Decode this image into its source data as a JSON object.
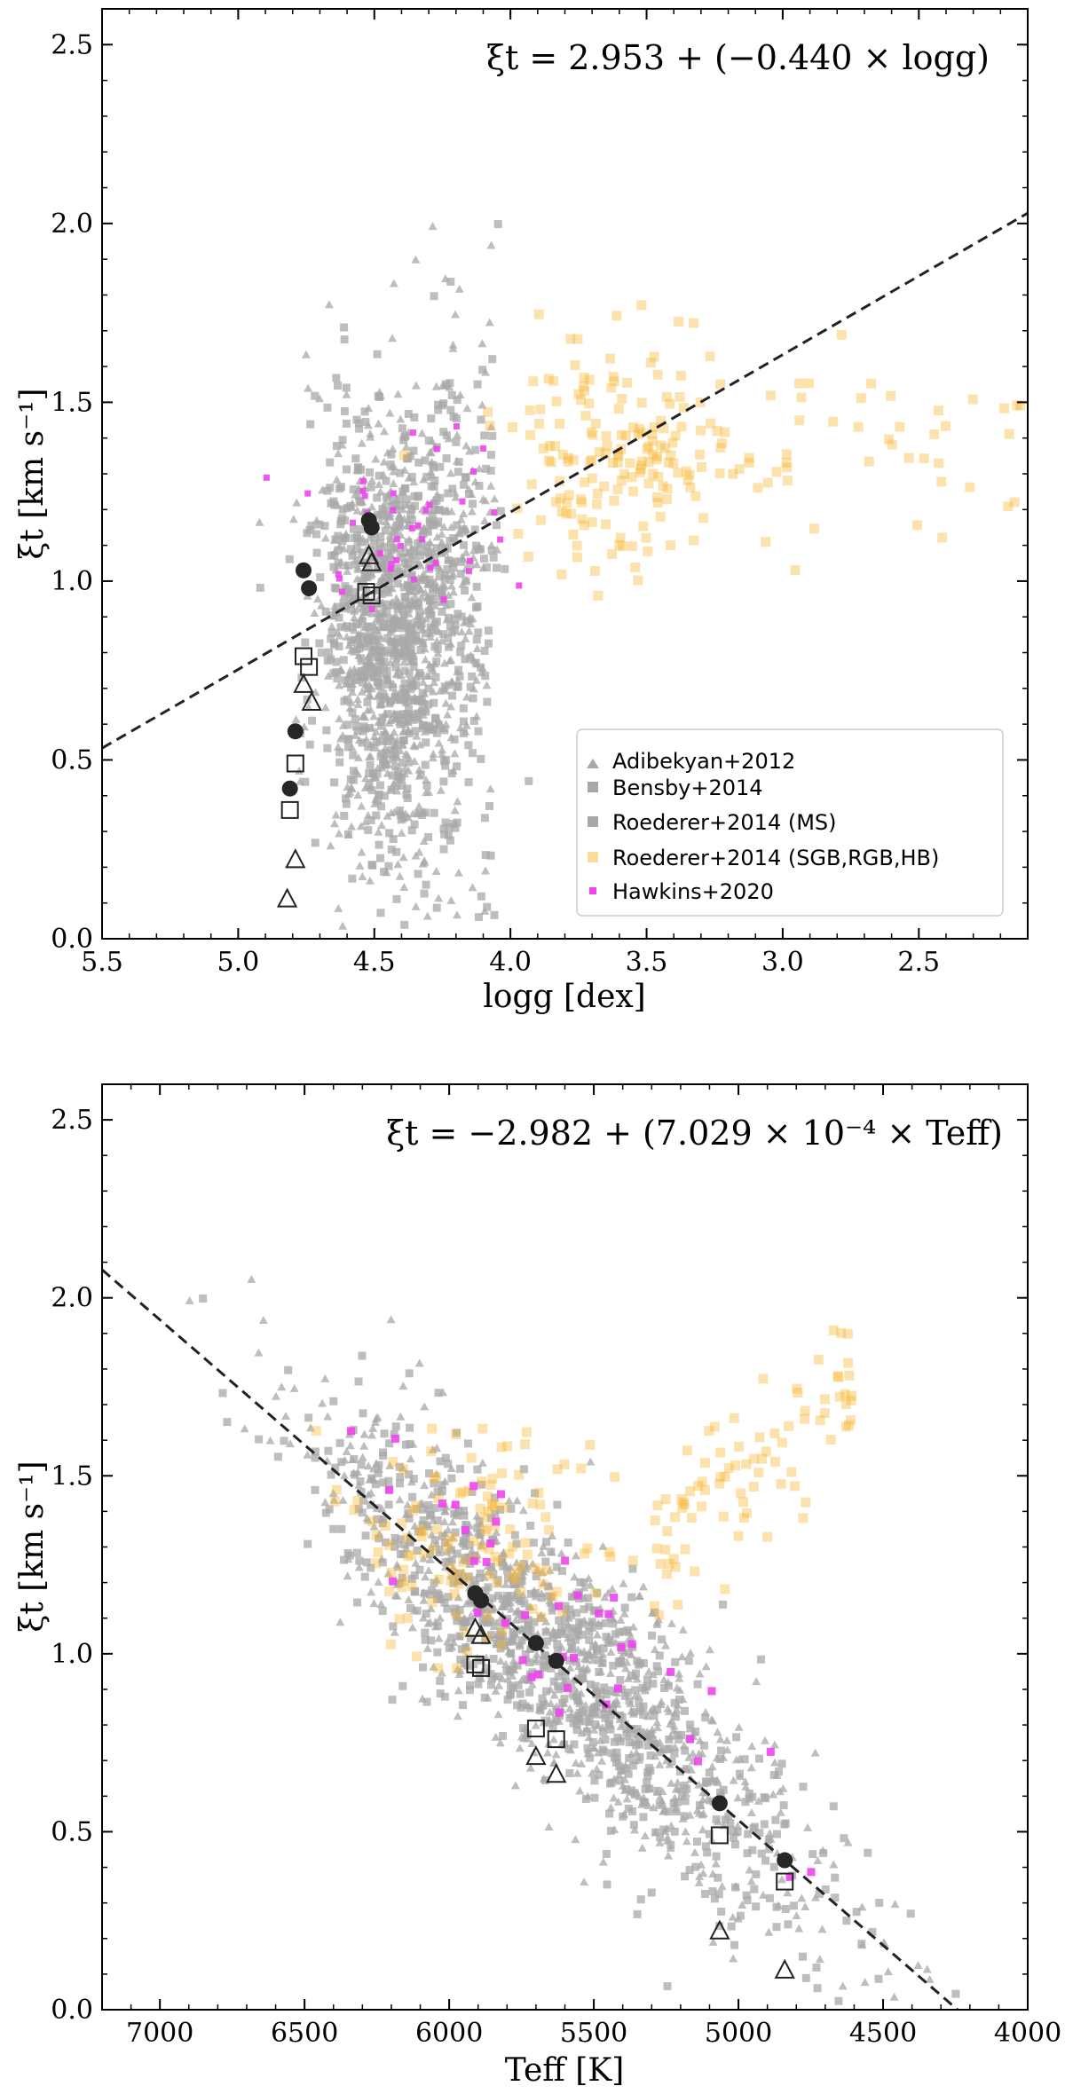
{
  "chart_data": [
    {
      "type": "scatter",
      "id": "top",
      "equation": "ξt = 2.953 + (−0.440 × logg)",
      "xlabel": "logg [dex]",
      "ylabel": "ξt [km s⁻¹]",
      "xlim": [
        5.5,
        2.1
      ],
      "ylim": [
        0,
        2.6
      ],
      "xticks": [
        "5.5",
        "5.0",
        "4.5",
        "4.0",
        "3.5",
        "3.0",
        "2.5"
      ],
      "yticks": [
        "0.0",
        "0.5",
        "1.0",
        "1.5",
        "2.0",
        "2.5"
      ],
      "fit_line": {
        "intercept": 2.953,
        "slope": -0.44
      },
      "legend": {
        "placement": "lower-right",
        "entries": [
          {
            "label": "Adibekyan+2012",
            "marker": "triangle",
            "color": "#a8a8a8"
          },
          {
            "label": "Bensby+2014",
            "marker": "square",
            "color": "#a8a8a8"
          },
          {
            "label": "Roederer+2014 (MS)",
            "marker": "square",
            "color": "#a8a8a8"
          },
          {
            "label": "Roederer+2014 (SGB,RGB,HB)",
            "marker": "square",
            "color": "#f7b733"
          },
          {
            "label": "Hawkins+2020",
            "marker": "square",
            "color": "#ee44ee"
          }
        ]
      },
      "highlight_series": [
        {
          "name": "filled circles",
          "marker": "circle-filled",
          "points": [
            [
              4.52,
              1.17
            ],
            [
              4.51,
              1.15
            ],
            [
              4.76,
              1.03
            ],
            [
              4.74,
              0.98
            ],
            [
              4.79,
              0.58
            ],
            [
              4.81,
              0.42
            ]
          ]
        },
        {
          "name": "open squares",
          "marker": "square-open",
          "points": [
            [
              4.53,
              0.97
            ],
            [
              4.51,
              0.96
            ],
            [
              4.76,
              0.79
            ],
            [
              4.74,
              0.76
            ],
            [
              4.79,
              0.49
            ],
            [
              4.81,
              0.36
            ]
          ]
        },
        {
          "name": "open triangles",
          "marker": "triangle-open",
          "points": [
            [
              4.52,
              1.07
            ],
            [
              4.51,
              1.05
            ],
            [
              4.76,
              0.71
            ],
            [
              4.73,
              0.66
            ],
            [
              4.79,
              0.22
            ],
            [
              4.82,
              0.11
            ]
          ]
        }
      ]
    },
    {
      "type": "scatter",
      "id": "bottom",
      "equation": "ξt = −2.982 + (7.029 × 10⁻⁴ × Teff)",
      "xlabel": "Teff [K]",
      "ylabel": "ξt [km s⁻¹]",
      "xlim": [
        7200,
        4000
      ],
      "ylim": [
        0,
        2.6
      ],
      "xticks": [
        "7000",
        "6500",
        "6000",
        "5500",
        "5000",
        "4500",
        "4000"
      ],
      "yticks": [
        "0.0",
        "0.5",
        "1.0",
        "1.5",
        "2.0",
        "2.5"
      ],
      "fit_line": {
        "intercept": -2.982,
        "slope": 0.0007029
      },
      "highlight_series": [
        {
          "name": "filled circles",
          "marker": "circle-filled",
          "points": [
            [
              5910,
              1.17
            ],
            [
              5890,
              1.15
            ],
            [
              5700,
              1.03
            ],
            [
              5630,
              0.98
            ],
            [
              5065,
              0.58
            ],
            [
              4840,
              0.42
            ]
          ]
        },
        {
          "name": "open squares",
          "marker": "square-open",
          "points": [
            [
              5910,
              0.97
            ],
            [
              5890,
              0.96
            ],
            [
              5700,
              0.79
            ],
            [
              5630,
              0.76
            ],
            [
              5065,
              0.49
            ],
            [
              4840,
              0.36
            ]
          ]
        },
        {
          "name": "open triangles",
          "marker": "triangle-open",
          "points": [
            [
              5910,
              1.07
            ],
            [
              5890,
              1.05
            ],
            [
              5700,
              0.71
            ],
            [
              5630,
              0.66
            ],
            [
              5065,
              0.22
            ],
            [
              4840,
              0.11
            ]
          ]
        }
      ]
    }
  ]
}
